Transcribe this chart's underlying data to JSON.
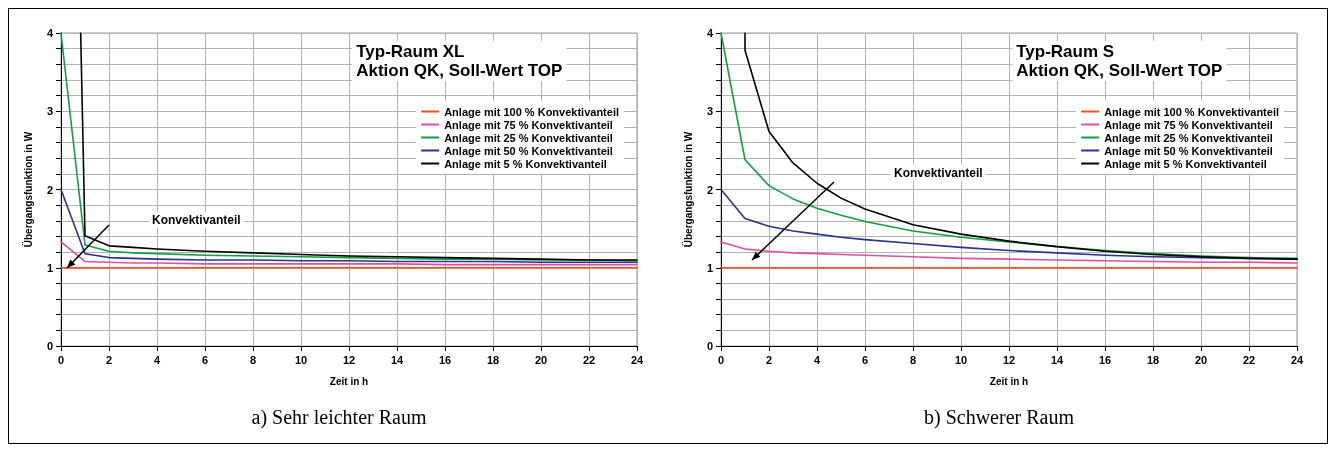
{
  "chart_data": [
    {
      "type": "line",
      "title": "Typ-Raum XL",
      "subtitle": "Aktion QK, Soll-Wert TOP",
      "xlabel": "Zeit in h",
      "ylabel": "Übergangsfunktion in W",
      "x": [
        0,
        1,
        2,
        3,
        4,
        6,
        8,
        10,
        12,
        14,
        16,
        18,
        20,
        22,
        24
      ],
      "series": [
        {
          "name": "Anlage mit 100 % Konvektivanteil",
          "color": "#f0501e",
          "values": [
            1,
            1,
            1,
            1,
            1,
            1,
            1,
            1,
            1,
            1,
            1,
            1,
            1,
            1,
            1
          ]
        },
        {
          "name": "Anlage mit 75 % Konvektivanteil",
          "color": "#e050a0",
          "values": [
            1.33,
            1.08,
            1.07,
            1.06,
            1.06,
            1.05,
            1.05,
            1.05,
            1.05,
            1.05,
            1.04,
            1.04,
            1.04,
            1.04,
            1.04
          ]
        },
        {
          "name": "Anlage mit 25 % Konvektivanteil",
          "color": "#10a040",
          "values": [
            4.0,
            1.29,
            1.21,
            1.19,
            1.18,
            1.16,
            1.15,
            1.14,
            1.13,
            1.12,
            1.11,
            1.11,
            1.1,
            1.1,
            1.09
          ]
        },
        {
          "name": "Anlage mit 50 % Konvektivanteil",
          "color": "#303090",
          "values": [
            2.0,
            1.18,
            1.13,
            1.12,
            1.11,
            1.1,
            1.1,
            1.09,
            1.09,
            1.08,
            1.08,
            1.08,
            1.07,
            1.07,
            1.07
          ]
        },
        {
          "name": "Anlage mit 5 % Konvektivanteil",
          "color": "#000000",
          "x": [
            0.82,
            1,
            2,
            3,
            4,
            6,
            8,
            10,
            12,
            14,
            16,
            18,
            20,
            22,
            24
          ],
          "values": [
            4.0,
            1.41,
            1.28,
            1.26,
            1.24,
            1.21,
            1.19,
            1.17,
            1.15,
            1.14,
            1.13,
            1.12,
            1.11,
            1.1,
            1.1
          ]
        }
      ],
      "xlim": [
        0,
        24
      ],
      "xticks": [
        0,
        2,
        4,
        6,
        8,
        10,
        12,
        14,
        16,
        18,
        20,
        22,
        24
      ],
      "ylim": [
        0,
        4
      ],
      "yticks": [
        0,
        {
          "value": 0.2,
          "label": null
        },
        {
          "value": 0.4,
          "label": null
        },
        {
          "value": 0.6,
          "label": null
        },
        {
          "value": 0.8,
          "label": null
        },
        1,
        {
          "value": 1.2,
          "label": null
        },
        {
          "value": 1.4,
          "label": null
        },
        {
          "value": 1.6,
          "label": null
        },
        {
          "value": 1.8,
          "label": null
        },
        2,
        {
          "value": 2.2,
          "label": null
        },
        {
          "value": 2.4,
          "label": null
        },
        {
          "value": 2.6,
          "label": null
        },
        {
          "value": 2.8,
          "label": null
        },
        3,
        {
          "value": 3.2,
          "label": null
        },
        {
          "value": 3.4,
          "label": null
        },
        {
          "value": 3.6,
          "label": null
        },
        {
          "value": 3.8,
          "label": null
        },
        4
      ],
      "grid": true,
      "legend": "top right",
      "marker": "none",
      "line_style": "solid",
      "annotations": [
        "Konvektivanteil",
        "a) Sehr leichter Raum"
      ]
    },
    {
      "type": "line",
      "title": "Typ-Raum S",
      "subtitle": "Aktion QK, Soll-Wert TOP",
      "xlabel": "Zeit in h",
      "ylabel": "Übergangsfunktion in W",
      "x": [
        0,
        1,
        2,
        3,
        4,
        5,
        6,
        8,
        10,
        12,
        14,
        16,
        18,
        20,
        22,
        24
      ],
      "series": [
        {
          "name": "Anlage mit 100 % Konvektivanteil",
          "color": "#f0501e",
          "values": [
            1,
            1,
            1,
            1,
            1,
            1,
            1,
            1,
            1,
            1,
            1,
            1,
            1,
            1,
            1,
            1
          ]
        },
        {
          "name": "Anlage mit 75 % Konvektivanteil",
          "color": "#e050a0",
          "values": [
            1.33,
            1.24,
            1.21,
            1.19,
            1.18,
            1.17,
            1.16,
            1.14,
            1.12,
            1.11,
            1.1,
            1.09,
            1.08,
            1.07,
            1.07,
            1.06
          ]
        },
        {
          "name": "Anlage mit 25 % Konvektivanteil",
          "color": "#10a040",
          "values": [
            4.0,
            2.38,
            2.05,
            1.88,
            1.76,
            1.67,
            1.59,
            1.47,
            1.39,
            1.33,
            1.27,
            1.22,
            1.18,
            1.15,
            1.13,
            1.12
          ]
        },
        {
          "name": "Anlage mit 50 % Konvektivanteil",
          "color": "#303090",
          "values": [
            2.0,
            1.63,
            1.53,
            1.47,
            1.43,
            1.39,
            1.36,
            1.31,
            1.26,
            1.22,
            1.19,
            1.16,
            1.14,
            1.13,
            1.12,
            1.11
          ]
        },
        {
          "name": "Anlage mit 5 % Konvektivanteil",
          "color": "#000000",
          "x": [
            1,
            1,
            2,
            3,
            4,
            5,
            6,
            8,
            10,
            12,
            14,
            16,
            18,
            20,
            22,
            24
          ],
          "values": [
            4.0,
            3.78,
            2.74,
            2.34,
            2.08,
            1.89,
            1.75,
            1.55,
            1.43,
            1.34,
            1.27,
            1.21,
            1.17,
            1.14,
            1.12,
            1.11
          ]
        }
      ],
      "xlim": [
        0,
        24
      ],
      "xticks": [
        0,
        2,
        4,
        6,
        8,
        10,
        12,
        14,
        16,
        18,
        20,
        22,
        24
      ],
      "ylim": [
        0,
        4
      ],
      "yticks": [
        0,
        {
          "value": 0.2,
          "label": null
        },
        {
          "value": 0.4,
          "label": null
        },
        {
          "value": 0.6,
          "label": null
        },
        {
          "value": 0.8,
          "label": null
        },
        1,
        {
          "value": 1.2,
          "label": null
        },
        {
          "value": 1.4,
          "label": null
        },
        {
          "value": 1.6,
          "label": null
        },
        {
          "value": 1.8,
          "label": null
        },
        2,
        {
          "value": 2.2,
          "label": null
        },
        {
          "value": 2.4,
          "label": null
        },
        {
          "value": 2.6,
          "label": null
        },
        {
          "value": 2.8,
          "label": null
        },
        3,
        {
          "value": 3.2,
          "label": null
        },
        {
          "value": 3.4,
          "label": null
        },
        {
          "value": 3.6,
          "label": null
        },
        {
          "value": 3.8,
          "label": null
        },
        4
      ],
      "grid": true,
      "legend": "top right",
      "marker": "none",
      "line_style": "solid",
      "annotations": [
        "Konvektivanteil",
        "b) Schwerer Raum"
      ]
    }
  ]
}
